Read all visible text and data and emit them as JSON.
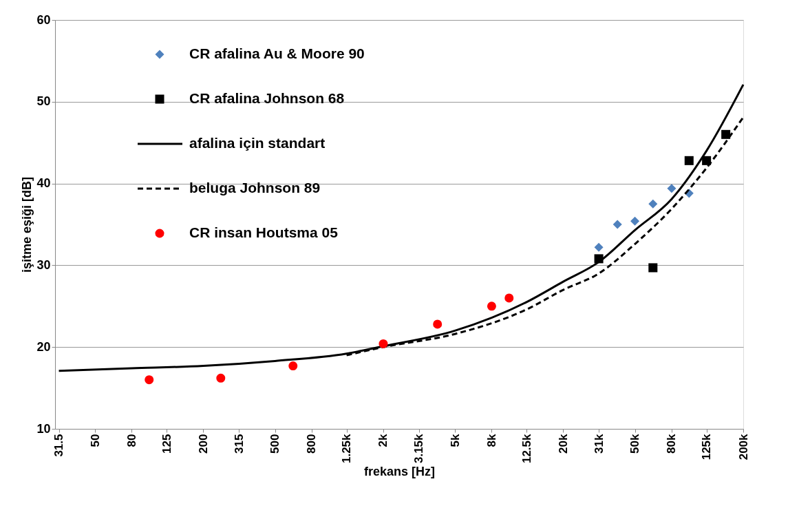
{
  "chart_data": {
    "type": "scatter",
    "xlabel": "frekans    [Hz]",
    "ylabel": "işitme eşiği    [dB]",
    "log": "x",
    "grid": "y",
    "legend": "top left",
    "xlim": [
      30,
      200000
    ],
    "ylim": [
      10,
      60
    ],
    "yticks": [
      10,
      20,
      30,
      40,
      50,
      60
    ],
    "xticks": [
      {
        "value": 31.5,
        "label": "31.5"
      },
      {
        "value": 50,
        "label": "50"
      },
      {
        "value": 80,
        "label": "80"
      },
      {
        "value": 125,
        "label": "125"
      },
      {
        "value": 200,
        "label": "200"
      },
      {
        "value": 315,
        "label": "315"
      },
      {
        "value": 500,
        "label": "500"
      },
      {
        "value": 800,
        "label": "800"
      },
      {
        "value": 1250,
        "label": "1.25k"
      },
      {
        "value": 2000,
        "label": "2k"
      },
      {
        "value": 3150,
        "label": "3.15k"
      },
      {
        "value": 5000,
        "label": "5k"
      },
      {
        "value": 8000,
        "label": "8k"
      },
      {
        "value": 12500,
        "label": "12.5k"
      },
      {
        "value": 20000,
        "label": "20k"
      },
      {
        "value": 31500,
        "label": "31k"
      },
      {
        "value": 50000,
        "label": "50k"
      },
      {
        "value": 80000,
        "label": "80k"
      },
      {
        "value": 125000,
        "label": "125k"
      },
      {
        "value": 200000,
        "label": "200k"
      }
    ],
    "series": [
      {
        "name": "CR   afalina    Au & Moore 90",
        "marker": "diamond",
        "color": "#4f81bd",
        "x": [
          31500,
          40000,
          50000,
          63000,
          80000,
          100000
        ],
        "values": [
          32.2,
          35.0,
          35.4,
          37.5,
          39.4,
          38.8
        ]
      },
      {
        "name": "CR   afalina    Johnson 68",
        "marker": "square",
        "color": "#000000",
        "x": [
          31500,
          63000,
          100000,
          125000,
          160000
        ],
        "values": [
          30.8,
          29.7,
          42.8,
          42.8,
          46.0
        ]
      },
      {
        "name": "afalina için standart",
        "type": "line",
        "line_style": "solid",
        "color": "#000000",
        "x": [
          31.5,
          80,
          200,
          500,
          1250,
          2000,
          5000,
          12500,
          20000,
          31500,
          50000,
          80000,
          125000,
          200000
        ],
        "values": [
          17.1,
          17.4,
          17.7,
          18.3,
          19.2,
          20.1,
          22.0,
          25.5,
          28.0,
          30.4,
          34.3,
          38.1,
          44.0,
          52.1
        ]
      },
      {
        "name": "beluga     Johnson  89",
        "type": "line",
        "line_style": "dashed",
        "color": "#000000",
        "x": [
          1250,
          2000,
          5000,
          12500,
          20000,
          31500,
          50000,
          80000,
          125000,
          200000
        ],
        "values": [
          19.0,
          20.0,
          21.6,
          24.6,
          27.0,
          29.0,
          32.6,
          36.9,
          41.9,
          48.1
        ]
      },
      {
        "name": "CR  insan    Houtsma 05",
        "marker": "circle",
        "color": "#ff0000",
        "x": [
          100,
          250,
          630,
          2000,
          4000,
          8000,
          10000
        ],
        "values": [
          16.0,
          16.2,
          17.7,
          20.4,
          22.8,
          25.0,
          26.0
        ]
      }
    ]
  }
}
